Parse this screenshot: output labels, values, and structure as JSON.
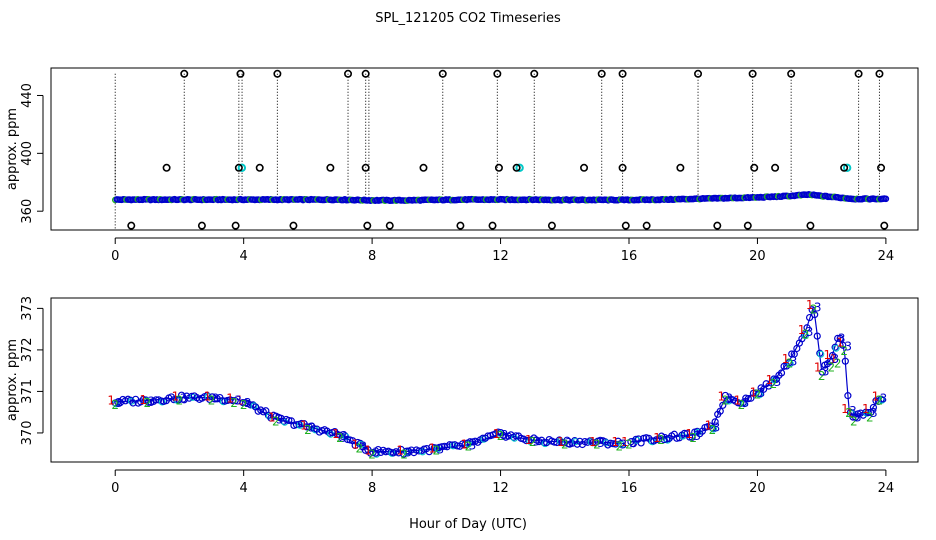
{
  "figure": {
    "title": "SPL_121205  CO2 Timeseries",
    "xlabel": "Hour of Day (UTC)"
  },
  "colors": {
    "axis": "#000000",
    "series1": "#e00000",
    "series2": "#20b020",
    "series3": "#0000cc",
    "highlight": "#00c8c8",
    "spike_marker": "#000000",
    "spike_fill": "#c8a000"
  },
  "chart_data": [
    {
      "id": "top",
      "type": "scatter",
      "ylabel": "approx. ppm",
      "xlim": [
        -2,
        25
      ],
      "ylim": [
        347,
        459
      ],
      "xticks": [
        0,
        4,
        8,
        12,
        16,
        20,
        24
      ],
      "yticks": [
        360,
        400,
        440
      ],
      "baseline": {
        "marker": "o",
        "points": [
          [
            0,
            368
          ],
          [
            1,
            368
          ],
          [
            2,
            368
          ],
          [
            3,
            368
          ],
          [
            4,
            368
          ],
          [
            5,
            368
          ],
          [
            6,
            368
          ],
          [
            7,
            368
          ],
          [
            8,
            367.5
          ],
          [
            9,
            367.5
          ],
          [
            10,
            367.8
          ],
          [
            11,
            368
          ],
          [
            12,
            368
          ],
          [
            13,
            368
          ],
          [
            14,
            367.8
          ],
          [
            15,
            367.8
          ],
          [
            16,
            367.8
          ],
          [
            17,
            368
          ],
          [
            18,
            368.5
          ],
          [
            19,
            369
          ],
          [
            20,
            369.5
          ],
          [
            21,
            370.5
          ],
          [
            21.6,
            371.5
          ],
          [
            22,
            370.5
          ],
          [
            23,
            368.5
          ],
          [
            23.8,
            368.5
          ]
        ]
      },
      "spikes_high": [
        2.15,
        3.9,
        5.05,
        7.25,
        7.8,
        10.2,
        11.9,
        13.05,
        15.15,
        15.8,
        18.15,
        19.85,
        21.05,
        23.15,
        23.8
      ],
      "spikes_mid": [
        1.6,
        3.85,
        4.5,
        6.7,
        7.8,
        9.6,
        11.95,
        12.5,
        14.6,
        15.8,
        17.6,
        19.9,
        20.55,
        22.7,
        23.85
      ],
      "spikes_low": [
        0.5,
        2.7,
        3.75,
        5.55,
        7.85,
        8.55,
        10.75,
        11.75,
        13.6,
        15.9,
        16.55,
        18.75,
        19.7,
        21.65,
        23.95
      ],
      "spike_levels": {
        "high": 455,
        "mid": 390,
        "low": 350
      },
      "dotted_lines": [
        0,
        2.15,
        3.85,
        3.95,
        5.05,
        7.25,
        7.8,
        7.9,
        10.2,
        11.9,
        13.05,
        15.15,
        15.8,
        18.15,
        19.85,
        21.05,
        23.15,
        23.8
      ]
    },
    {
      "id": "bottom",
      "type": "scatter",
      "ylabel": "approx. ppm",
      "xlim": [
        -2,
        25
      ],
      "ylim": [
        369.3,
        373.25
      ],
      "xticks": [
        0,
        4,
        8,
        12,
        16,
        20,
        24
      ],
      "yticks": [
        370,
        371,
        372,
        373
      ],
      "marker_labels": [
        "1",
        "2",
        "3"
      ],
      "series": [
        {
          "name": "1",
          "marker": "1",
          "values": [
            [
              0,
              370.8
            ],
            [
              1,
              370.82
            ],
            [
              2,
              370.9
            ],
            [
              3,
              370.9
            ],
            [
              3.7,
              370.85
            ],
            [
              4,
              370.8
            ],
            [
              5,
              370.4
            ],
            [
              6,
              370.2
            ],
            [
              7,
              370.0
            ],
            [
              7.6,
              369.75
            ],
            [
              8,
              369.6
            ],
            [
              9,
              369.6
            ],
            [
              10,
              369.65
            ],
            [
              11,
              369.75
            ],
            [
              12,
              370.0
            ],
            [
              13,
              369.85
            ],
            [
              14,
              369.8
            ],
            [
              15,
              369.8
            ],
            [
              15.7,
              369.8
            ],
            [
              16,
              369.8
            ],
            [
              17,
              369.9
            ],
            [
              18,
              370.0
            ],
            [
              18.6,
              370.2
            ],
            [
              19,
              370.9
            ],
            [
              19.5,
              370.8
            ],
            [
              20,
              371.0
            ],
            [
              20.5,
              371.3
            ],
            [
              21,
              371.8
            ],
            [
              21.5,
              372.5
            ],
            [
              21.75,
              373.1
            ],
            [
              22,
              371.6
            ],
            [
              22.3,
              371.9
            ],
            [
              22.5,
              371.8
            ],
            [
              22.7,
              372.2
            ],
            [
              22.85,
              370.6
            ],
            [
              23,
              370.5
            ],
            [
              23.5,
              370.6
            ],
            [
              23.8,
              370.9
            ]
          ]
        },
        {
          "name": "2",
          "marker": "2",
          "values": [
            [
              0,
              370.7
            ],
            [
              1,
              370.75
            ],
            [
              2,
              370.8
            ],
            [
              3,
              370.8
            ],
            [
              3.7,
              370.75
            ],
            [
              4,
              370.7
            ],
            [
              5,
              370.3
            ],
            [
              6,
              370.1
            ],
            [
              7,
              369.9
            ],
            [
              7.6,
              369.65
            ],
            [
              8,
              369.5
            ],
            [
              9,
              369.5
            ],
            [
              10,
              369.6
            ],
            [
              11,
              369.7
            ],
            [
              12,
              369.95
            ],
            [
              13,
              369.8
            ],
            [
              14,
              369.75
            ],
            [
              15,
              369.75
            ],
            [
              15.7,
              369.7
            ],
            [
              16,
              369.75
            ],
            [
              17,
              369.85
            ],
            [
              18,
              369.9
            ],
            [
              18.6,
              370.1
            ],
            [
              19,
              370.8
            ],
            [
              19.5,
              370.7
            ],
            [
              20,
              370.95
            ],
            [
              20.5,
              371.2
            ],
            [
              21,
              371.7
            ],
            [
              21.5,
              372.4
            ],
            [
              21.75,
              373.0
            ],
            [
              22,
              371.4
            ],
            [
              22.3,
              371.6
            ],
            [
              22.5,
              371.7
            ],
            [
              22.7,
              372.0
            ],
            [
              22.85,
              370.5
            ],
            [
              23,
              370.3
            ],
            [
              23.5,
              370.4
            ],
            [
              23.8,
              370.8
            ]
          ]
        },
        {
          "name": "3",
          "marker": "3",
          "values": [
            [
              0,
              370.75
            ],
            [
              1,
              370.78
            ],
            [
              2,
              370.85
            ],
            [
              3,
              370.85
            ],
            [
              3.7,
              370.8
            ],
            [
              4,
              370.75
            ],
            [
              5,
              370.35
            ],
            [
              6,
              370.15
            ],
            [
              7,
              369.95
            ],
            [
              7.6,
              369.7
            ],
            [
              8,
              369.55
            ],
            [
              9,
              369.55
            ],
            [
              10,
              369.62
            ],
            [
              11,
              369.72
            ],
            [
              12,
              369.98
            ],
            [
              13,
              369.82
            ],
            [
              14,
              369.78
            ],
            [
              15,
              369.78
            ],
            [
              15.7,
              369.75
            ],
            [
              16,
              369.78
            ],
            [
              17,
              369.88
            ],
            [
              18,
              369.95
            ],
            [
              18.6,
              370.15
            ],
            [
              19,
              370.85
            ],
            [
              19.5,
              370.75
            ],
            [
              20,
              370.98
            ],
            [
              20.5,
              371.25
            ],
            [
              21,
              371.75
            ],
            [
              21.5,
              372.45
            ],
            [
              21.75,
              373.05
            ],
            [
              22,
              371.5
            ],
            [
              22.3,
              371.8
            ],
            [
              22.5,
              372.3
            ],
            [
              22.7,
              372.1
            ],
            [
              22.85,
              370.55
            ],
            [
              23,
              370.4
            ],
            [
              23.5,
              370.5
            ],
            [
              23.8,
              370.85
            ]
          ]
        }
      ]
    }
  ]
}
